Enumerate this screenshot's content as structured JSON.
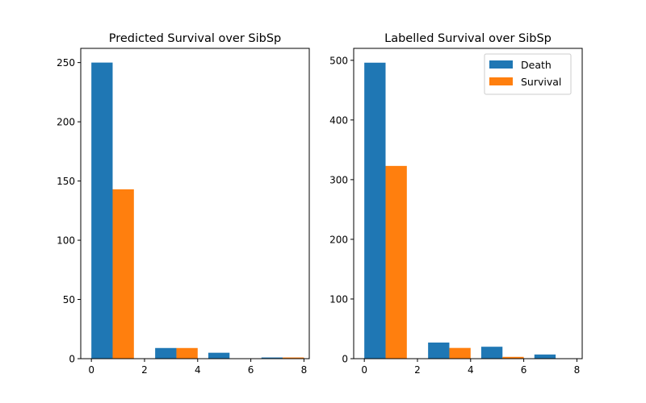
{
  "chart_data": [
    {
      "type": "bar",
      "title": "Predicted Survival over SibSp",
      "xlabel": "",
      "ylabel": "",
      "xlim": [
        -0.4,
        8.2
      ],
      "ylim": [
        0,
        262
      ],
      "xticks": [
        0,
        2,
        4,
        6,
        8
      ],
      "yticks": [
        0,
        50,
        100,
        150,
        200,
        250
      ],
      "bin_width": 0.8,
      "legend": null,
      "series": [
        {
          "name": "Death",
          "color": "#1f77b4",
          "x": [
            0.4,
            2.8,
            4.8,
            6.8
          ],
          "values": [
            250,
            9,
            5,
            1
          ]
        },
        {
          "name": "Survival",
          "color": "#ff7f0e",
          "x": [
            1.2,
            3.6,
            5.6,
            7.6
          ],
          "values": [
            143,
            9,
            0,
            1
          ]
        }
      ]
    },
    {
      "type": "bar",
      "title": "Labelled Survival over SibSp",
      "xlabel": "",
      "ylabel": "",
      "xlim": [
        -0.4,
        8.2
      ],
      "ylim": [
        0,
        520
      ],
      "xticks": [
        0,
        2,
        4,
        6,
        8
      ],
      "yticks": [
        0,
        100,
        200,
        300,
        400,
        500
      ],
      "bin_width": 0.8,
      "legend": "top-right",
      "series": [
        {
          "name": "Death",
          "color": "#1f77b4",
          "x": [
            0.4,
            2.8,
            4.8,
            6.8
          ],
          "values": [
            496,
            27,
            20,
            7
          ]
        },
        {
          "name": "Survival",
          "color": "#ff7f0e",
          "x": [
            1.2,
            3.6,
            5.6,
            7.6
          ],
          "values": [
            323,
            18,
            3,
            0
          ]
        }
      ]
    }
  ]
}
